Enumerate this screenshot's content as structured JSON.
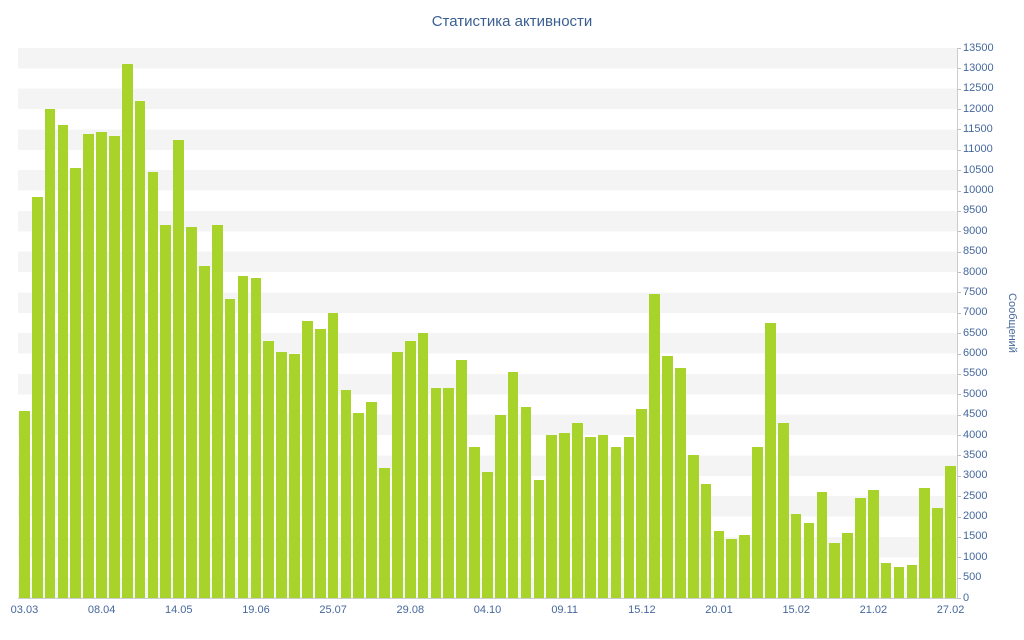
{
  "chart_data": {
    "type": "bar",
    "title": "Статистика активности",
    "ylabel": "Сообщений",
    "xlabel": "",
    "ylim": [
      0,
      13500
    ],
    "ytick_step": 500,
    "grid": "striped-horizontal-bands",
    "legend": "none",
    "x_tick_labels": [
      "03.03",
      "08.04",
      "14.05",
      "19.06",
      "25.07",
      "29.08",
      "04.10",
      "09.11",
      "15.12",
      "20.01",
      "15.02",
      "21.02",
      "27.02"
    ],
    "x_label_every": 6,
    "values": [
      4600,
      9850,
      12000,
      11600,
      10550,
      11400,
      11450,
      11350,
      13100,
      12200,
      10450,
      9150,
      11250,
      9100,
      8150,
      9150,
      7350,
      7900,
      7850,
      6300,
      6050,
      6000,
      6800,
      6600,
      7000,
      5100,
      4550,
      4800,
      3200,
      6050,
      6300,
      6500,
      5150,
      5150,
      5850,
      3700,
      3100,
      4500,
      5550,
      4700,
      2900,
      4000,
      4050,
      4300,
      3950,
      4000,
      3700,
      3950,
      4650,
      7450,
      5950,
      5650,
      3500,
      2800,
      1650,
      1450,
      1550,
      3700,
      6750,
      4300,
      2050,
      1850,
      2600,
      1350,
      1600,
      2450,
      2650,
      850,
      750,
      800,
      2700,
      2200,
      3250
    ],
    "bar_color": "#a8d32b",
    "title_color": "#3a5f92",
    "tick_color": "#46689c",
    "stripe_color": "#f4f4f4"
  }
}
